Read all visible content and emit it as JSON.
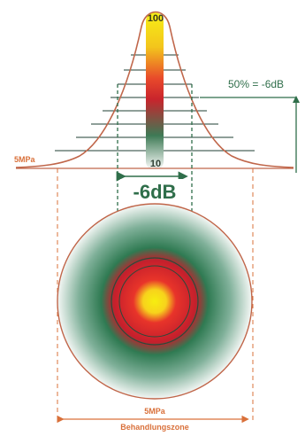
{
  "labels": {
    "scale_top": "100",
    "scale_bottom": "10",
    "half_pressure": "50% = -6dB",
    "threshold_left": "5MPa",
    "focus_width": "-6dB",
    "zone_pressure": "5MPa",
    "zone_name": "Behandlungszone"
  },
  "colors": {
    "curve": "#c0664a",
    "green": "#2f6e4a",
    "orange": "#d9703a",
    "yellow": "#f5e81a",
    "red": "#d61f26"
  }
}
